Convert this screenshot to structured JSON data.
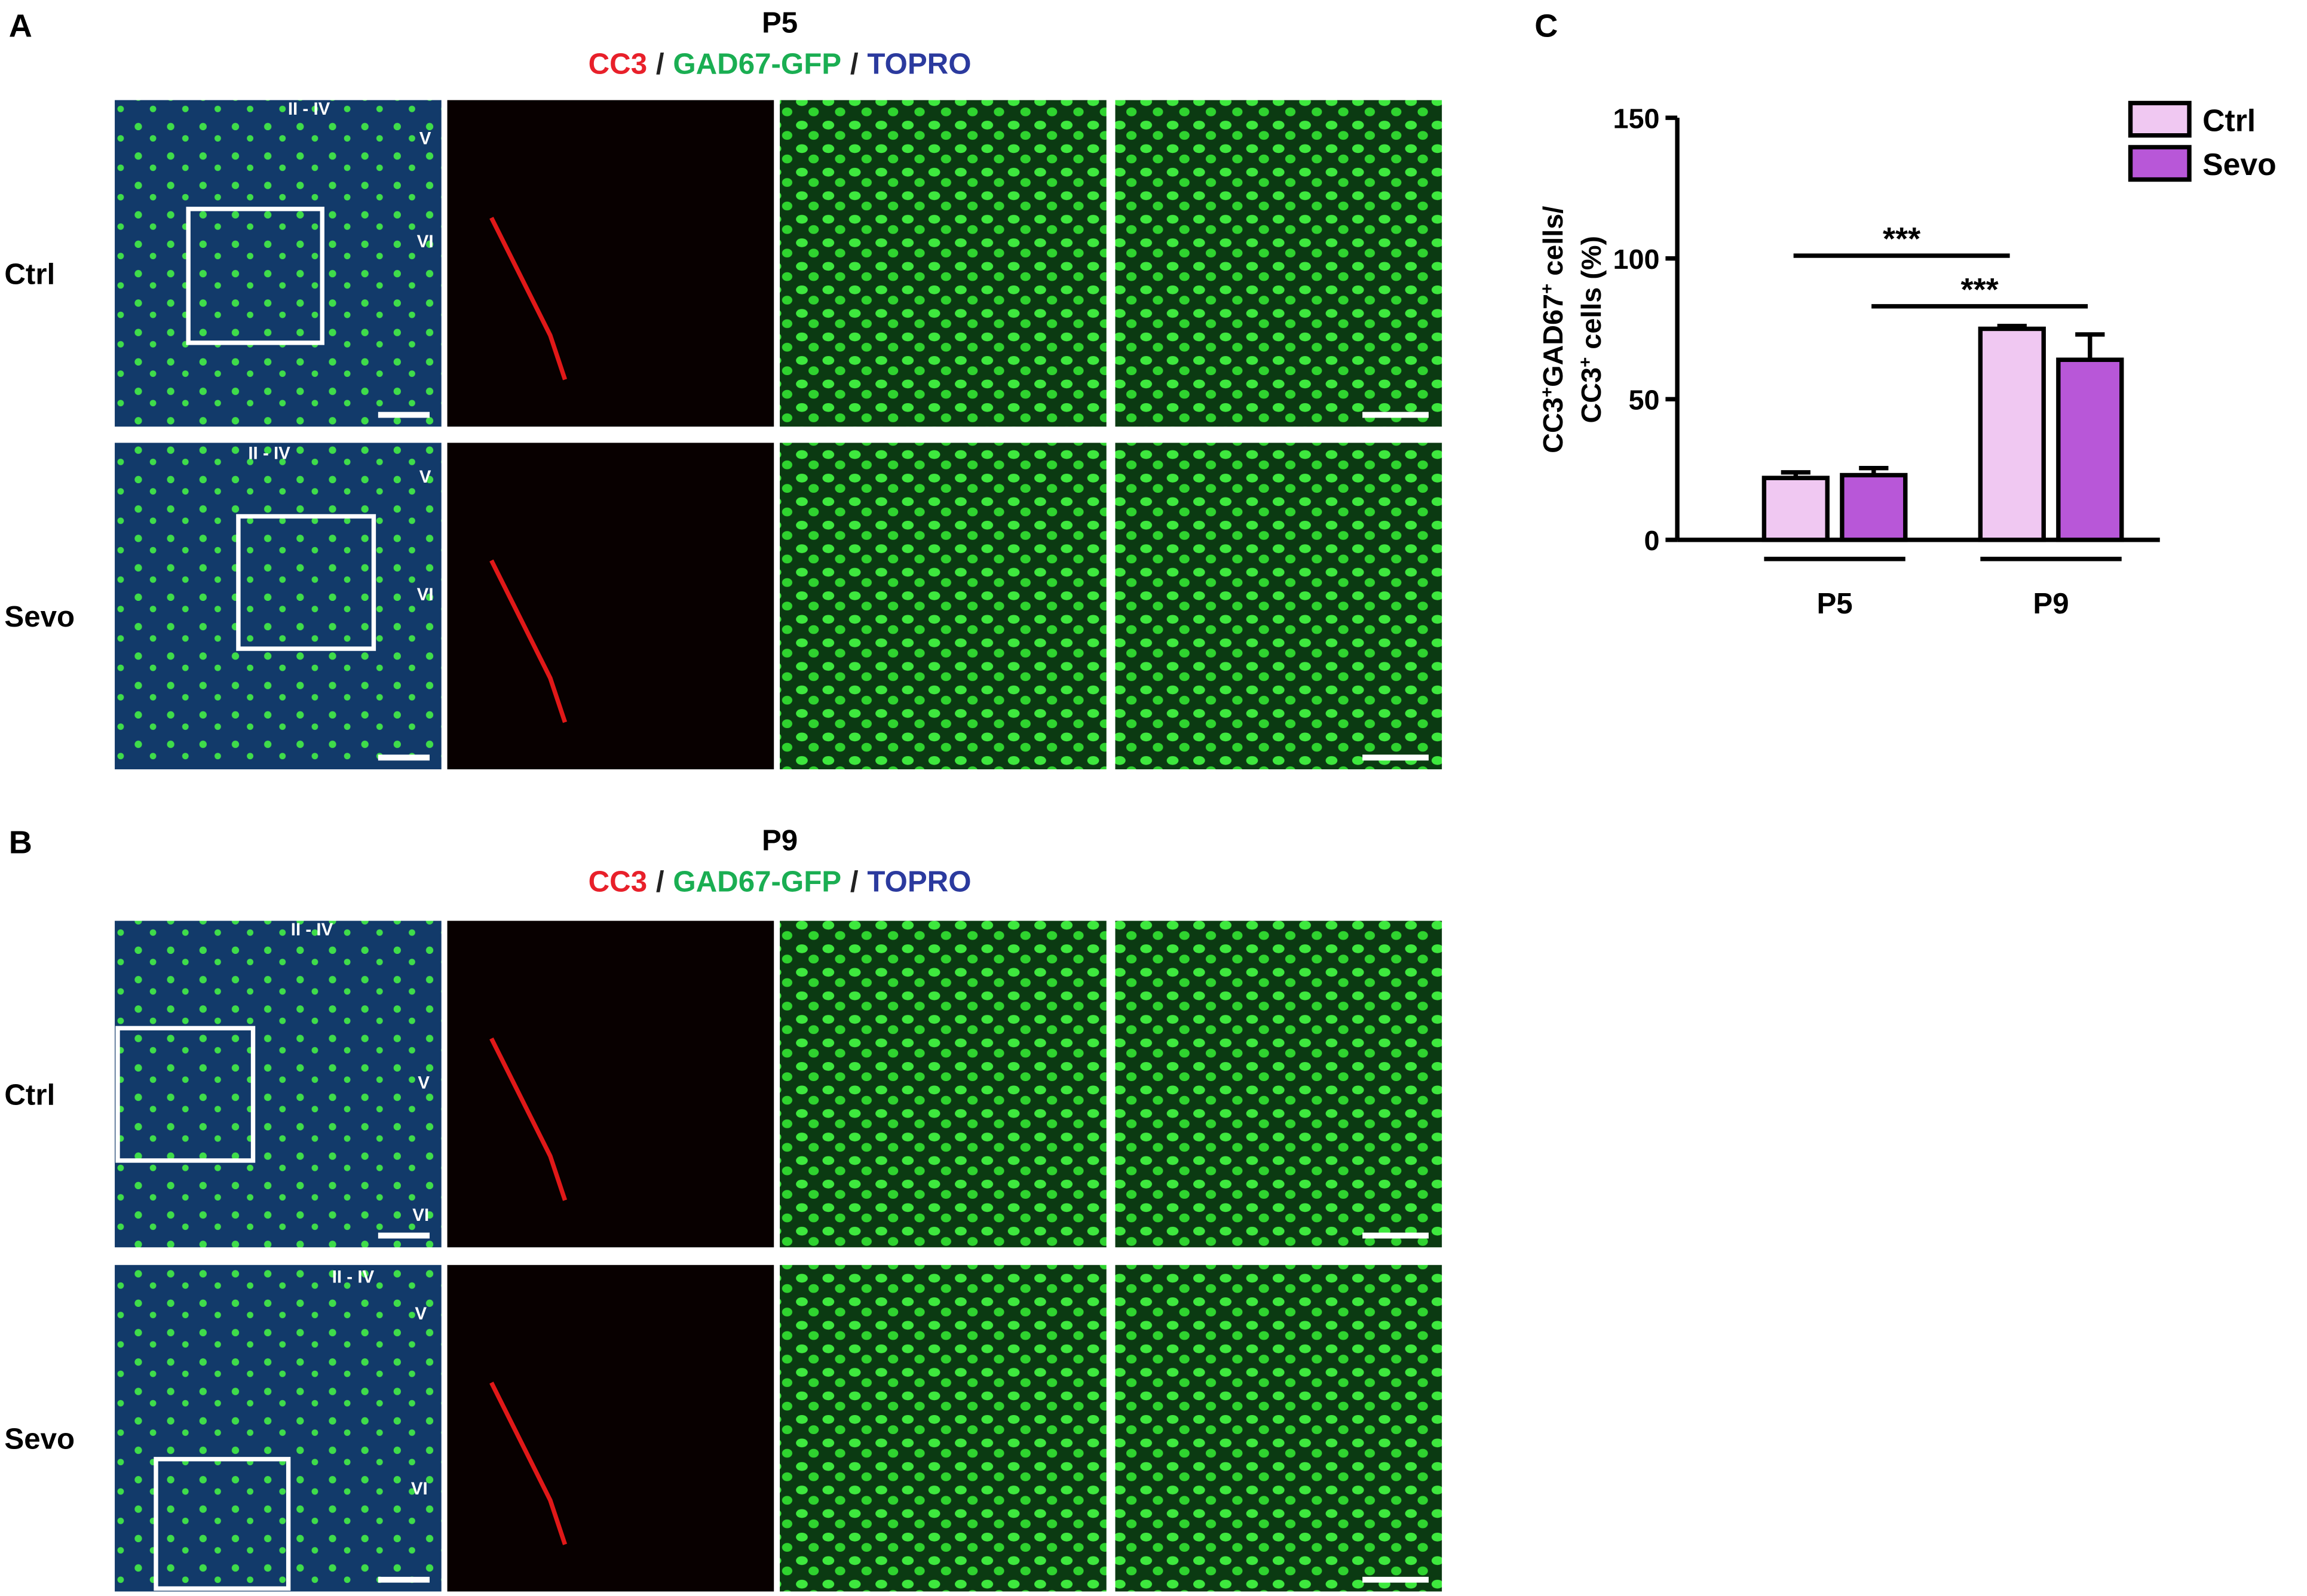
{
  "figure": {
    "panels": [
      {
        "letter": "A",
        "title": "P5",
        "stain": [
          {
            "text": "CC3",
            "color": "#e8202a"
          },
          {
            "text": "/",
            "color": "#222222"
          },
          {
            "text": "GAD67-GFP",
            "color": "#1aae52"
          },
          {
            "text": "/",
            "color": "#222222"
          },
          {
            "text": "TOPRO",
            "color": "#2b3a9e"
          }
        ],
        "rows": [
          {
            "label": "Ctrl",
            "layers": [
              "II - IV",
              "V",
              "VI"
            ]
          },
          {
            "label": "Sevo",
            "layers": [
              "II - IV",
              "V",
              "VI"
            ]
          }
        ]
      },
      {
        "letter": "B",
        "title": "P9",
        "stain": [
          {
            "text": "CC3",
            "color": "#e8202a"
          },
          {
            "text": "/",
            "color": "#222222"
          },
          {
            "text": "GAD67-GFP",
            "color": "#1aae52"
          },
          {
            "text": "/",
            "color": "#222222"
          },
          {
            "text": "TOPRO",
            "color": "#2b3a9e"
          }
        ],
        "rows": [
          {
            "label": "Ctrl",
            "layers": [
              "II - IV",
              "V",
              "VI"
            ]
          },
          {
            "label": "Sevo",
            "layers": [
              "II - IV",
              "V",
              "VI"
            ]
          }
        ]
      }
    ],
    "chart_letter": "C"
  },
  "chart_data": {
    "type": "bar",
    "ylabel": [
      [
        {
          "text": "CC3"
        },
        {
          "text": "+",
          "sup": true
        },
        {
          "text": "GAD67"
        },
        {
          "text": "+",
          "sup": true
        },
        {
          "text": " cells/"
        }
      ],
      [
        {
          "text": "CC3"
        },
        {
          "text": "+",
          "sup": true
        },
        {
          "text": " cells (%)"
        }
      ]
    ],
    "categories": [
      "P5",
      "P9"
    ],
    "series": [
      {
        "name": "Ctrl",
        "color": "#f0c8f2",
        "values": [
          22,
          75
        ],
        "errors": [
          2,
          1
        ]
      },
      {
        "name": "Sevo",
        "color": "#b857d8",
        "values": [
          23,
          64
        ],
        "errors": [
          2.5,
          9
        ]
      }
    ],
    "ylim": [
      0,
      150
    ],
    "yticks": [
      0,
      50,
      100,
      150
    ],
    "legend": "top-right",
    "annotations": [
      {
        "text": "***",
        "from": [
          0,
          0
        ],
        "to": [
          1,
          0
        ],
        "y": 101
      },
      {
        "text": "***",
        "from": [
          0,
          1
        ],
        "to": [
          1,
          1
        ],
        "y": 83
      }
    ]
  }
}
